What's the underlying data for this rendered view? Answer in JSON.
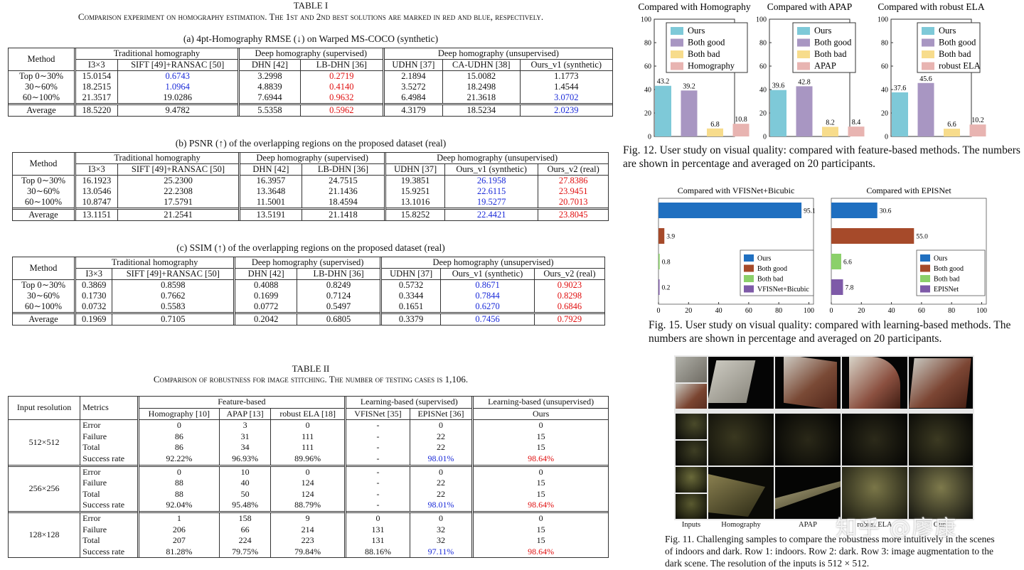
{
  "table1": {
    "title": "TABLE I",
    "caption": "Comparison experiment on homography estimation. The 1st and 2nd best solutions are marked in red and blue, respectively.",
    "col_groups": [
      "Traditional homography",
      "Deep homography (supervised)",
      "Deep homography (unsupervised)"
    ],
    "method_label": "Method",
    "sub_a": {
      "title": "(a) 4pt-Homography RMSE (↓) on Warped MS-COCO (synthetic)",
      "cols": [
        "I3×3",
        "SIFT [49]+RANSAC [50]",
        "DHN [42]",
        "LB-DHN [36]",
        "UDHN [37]",
        "CA-UDHN [38]",
        "Ours_v1 (synthetic)"
      ],
      "rows": [
        [
          "Top 0∼30%",
          "15.0154",
          "0.6743",
          "3.2998",
          "0.2719",
          "2.1894",
          "15.0082",
          "1.1773"
        ],
        [
          "30∼60%",
          "18.2515",
          "1.0964",
          "4.8839",
          "0.4140",
          "3.5272",
          "18.2498",
          "1.4544"
        ],
        [
          "60∼100%",
          "21.3517",
          "19.0286",
          "7.6944",
          "0.9632",
          "6.4984",
          "21.3618",
          "3.0702"
        ]
      ],
      "avg": [
        "Average",
        "18.5220",
        "9.4782",
        "5.5358",
        "0.5962",
        "4.3179",
        "18.5234",
        "2.0239"
      ]
    },
    "sub_b": {
      "title": "(b) PSNR (↑) of the overlapping regions on the proposed dataset (real)",
      "cols": [
        "I3×3",
        "SIFT [49]+RANSAC [50]",
        "DHN [42]",
        "LB-DHN [36]",
        "UDHN [37]",
        "Ours_v1 (synthetic)",
        "Ours_v2 (real)"
      ],
      "rows": [
        [
          "Top 0∼30%",
          "16.1923",
          "25.2300",
          "16.3957",
          "24.7515",
          "19.3851",
          "26.1958",
          "27.8386"
        ],
        [
          "30∼60%",
          "13.0546",
          "22.2308",
          "13.3648",
          "21.1436",
          "15.9251",
          "22.6115",
          "23.9451"
        ],
        [
          "60∼100%",
          "10.8747",
          "17.5791",
          "11.5001",
          "18.4594",
          "13.1016",
          "19.5277",
          "20.7013"
        ]
      ],
      "avg": [
        "Average",
        "13.1151",
        "21.2541",
        "13.5191",
        "21.1418",
        "15.8252",
        "22.4421",
        "23.8045"
      ]
    },
    "sub_c": {
      "title": "(c) SSIM (↑) of the overlapping regions on the proposed dataset (real)",
      "cols": [
        "I3×3",
        "SIFT [49]+RANSAC [50]",
        "DHN [42]",
        "LB-DHN [36]",
        "UDHN [37]",
        "Ours_v1 (synthetic)",
        "Ours_v2 (real)"
      ],
      "rows": [
        [
          "Top 0∼30%",
          "0.3869",
          "0.8598",
          "0.4088",
          "0.8249",
          "0.5732",
          "0.8671",
          "0.9023"
        ],
        [
          "30∼60%",
          "0.1730",
          "0.7662",
          "0.1699",
          "0.7124",
          "0.3344",
          "0.7844",
          "0.8298"
        ],
        [
          "60∼100%",
          "0.0732",
          "0.5583",
          "0.0772",
          "0.5497",
          "0.1651",
          "0.6270",
          "0.6846"
        ]
      ],
      "avg": [
        "Average",
        "0.1969",
        "0.7105",
        "0.2042",
        "0.6805",
        "0.3379",
        "0.7456",
        "0.7929"
      ]
    }
  },
  "table2": {
    "title": "TABLE II",
    "caption": "Comparison of robustness for image stitching. The number of testing cases is 1,106.",
    "groups": [
      "Feature-based",
      "Learning-based (supervised)",
      "Learning-based (unsupervised)"
    ],
    "head": [
      "Input resolution",
      "Metrics",
      "Homography [10]",
      "APAP [13]",
      "robust ELA [18]",
      "VFISNet [35]",
      "EPISNet [36]",
      "Ours"
    ],
    "blocks": [
      {
        "res": "512×512",
        "rows": [
          [
            "Error",
            "0",
            "3",
            "0",
            "-",
            "0",
            "0"
          ],
          [
            "Failure",
            "86",
            "31",
            "111",
            "-",
            "22",
            "15"
          ],
          [
            "Total",
            "86",
            "34",
            "111",
            "-",
            "22",
            "15"
          ],
          [
            "Success rate",
            "92.22%",
            "96.93%",
            "89.96%",
            "-",
            "98.01%",
            "98.64%"
          ]
        ]
      },
      {
        "res": "256×256",
        "rows": [
          [
            "Error",
            "0",
            "10",
            "0",
            "-",
            "0",
            "0"
          ],
          [
            "Failure",
            "88",
            "40",
            "124",
            "-",
            "22",
            "15"
          ],
          [
            "Total",
            "88",
            "50",
            "124",
            "-",
            "22",
            "15"
          ],
          [
            "Success rate",
            "92.04%",
            "95.48%",
            "88.79%",
            "-",
            "98.01%",
            "98.64%"
          ]
        ]
      },
      {
        "res": "128×128",
        "rows": [
          [
            "Error",
            "1",
            "158",
            "9",
            "0",
            "0",
            "0"
          ],
          [
            "Failure",
            "206",
            "66",
            "214",
            "131",
            "32",
            "15"
          ],
          [
            "Total",
            "207",
            "224",
            "223",
            "131",
            "32",
            "15"
          ],
          [
            "Success rate",
            "81.28%",
            "79.75%",
            "79.84%",
            "88.16%",
            "97.11%",
            "98.64%"
          ]
        ]
      }
    ]
  },
  "chart_data": [
    {
      "type": "bar",
      "title": "Compared with Homography",
      "categories": [
        "Ours",
        "Both good",
        "Both bad",
        "Homography"
      ],
      "values": [
        43.2,
        39.2,
        6.8,
        10.8
      ],
      "ylim": [
        0,
        100
      ],
      "yticks": [
        "0",
        "20",
        "40",
        "60",
        "80",
        "100"
      ],
      "colors": [
        "#7ec9d8",
        "#a896c2",
        "#f7dc8c",
        "#e8b4b1"
      ],
      "legend": "top"
    },
    {
      "type": "bar",
      "title": "Compared with APAP",
      "categories": [
        "Ours",
        "Both good",
        "Both bad",
        "APAP"
      ],
      "values": [
        39.6,
        42.8,
        8.2,
        8.4
      ],
      "ylim": [
        0,
        100
      ],
      "yticks": [
        "0",
        "20",
        "40",
        "60",
        "80",
        "100"
      ],
      "colors": [
        "#7ec9d8",
        "#a896c2",
        "#f7dc8c",
        "#e8b4b1"
      ],
      "legend": "top"
    },
    {
      "type": "bar",
      "title": "Compared with robust ELA",
      "categories": [
        "Ours",
        "Both good",
        "Both bad",
        "robust ELA"
      ],
      "values": [
        37.6,
        45.6,
        6.6,
        10.2
      ],
      "ylim": [
        0,
        100
      ],
      "yticks": [
        "0",
        "20",
        "40",
        "60",
        "80",
        "100"
      ],
      "colors": [
        "#7ec9d8",
        "#a896c2",
        "#f7dc8c",
        "#e8b4b1"
      ],
      "legend": "top"
    },
    {
      "type": "bar",
      "orientation": "horizontal",
      "title": "Compared with VFISNet+Bicubic",
      "categories": [
        "Ours",
        "Both good",
        "Both bad",
        "VFISNet+Bicubic"
      ],
      "values": [
        95.1,
        3.9,
        0.8,
        0.2
      ],
      "xlim": [
        0,
        100
      ],
      "xticks": [
        "0",
        "20",
        "40",
        "60",
        "80",
        "100"
      ],
      "colors": [
        "#1f6fc0",
        "#a64a2a",
        "#8bd06a",
        "#7e5aa8"
      ],
      "legend": "bottom-right"
    },
    {
      "type": "bar",
      "orientation": "horizontal",
      "title": "Compared with EPISNet",
      "categories": [
        "Ours",
        "Both good",
        "Both bad",
        "EPISNet"
      ],
      "values": [
        30.6,
        55.0,
        6.6,
        7.8
      ],
      "xlim": [
        0,
        100
      ],
      "xticks": [
        "0",
        "20",
        "40",
        "60",
        "80",
        "100"
      ],
      "colors": [
        "#1f6fc0",
        "#a64a2a",
        "#8bd06a",
        "#7e5aa8"
      ],
      "legend": "bottom-right"
    }
  ],
  "fig12": {
    "caption": "Fig. 12. User study on visual quality: compared with feature-based methods. The numbers are shown in percentage and averaged on 20 participants."
  },
  "fig15": {
    "caption": "Fig. 15. User study on visual quality: compared with learning-based methods. The numbers are shown in percentage and averaged on 20 participants."
  },
  "fig11": {
    "labels": [
      "Inputs",
      "Homography",
      "APAP",
      "robust ELA",
      "Ours"
    ],
    "caption": "Fig. 11. Challenging samples to compare the robustness more intuitively in the scenes of indoors and dark. Row 1: indoors. Row 2: dark. Row 3: image augmentation to the dark scene. The resolution of the inputs is 512 × 512.",
    "watermark": "知乎 @廖康"
  }
}
